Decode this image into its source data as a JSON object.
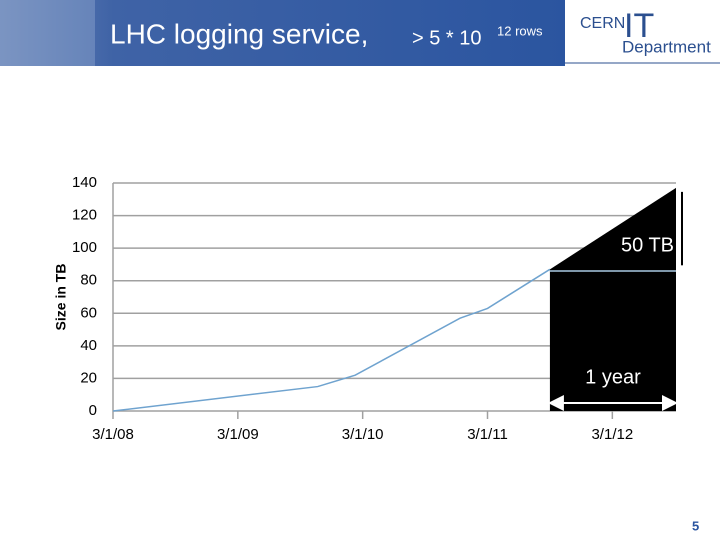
{
  "header": {
    "title": "LHC logging service,",
    "title_suffix": "> 5 * 10",
    "superscript": "12 rows",
    "logo_cern": "CERN",
    "logo_it": "IT",
    "logo_department": "Department"
  },
  "page_number": "5",
  "chart_data": {
    "type": "line",
    "ylabel": "Size in TB",
    "xlim": [
      2008.17,
      2012.68
    ],
    "xticks": [
      {
        "value": 2008.17,
        "label": "3/1/08"
      },
      {
        "value": 2009.17,
        "label": "3/1/09"
      },
      {
        "value": 2010.17,
        "label": "3/1/10"
      },
      {
        "value": 2011.17,
        "label": "3/1/11"
      },
      {
        "value": 2012.17,
        "label": "3/1/12"
      }
    ],
    "ylim": [
      0,
      140
    ],
    "yticks": [
      0,
      20,
      40,
      60,
      80,
      100,
      120,
      140
    ],
    "grid": true,
    "series": [
      {
        "color": "#6fa3cf",
        "x": [
          2008.17,
          2009.81,
          2010.11,
          2010.95,
          2011.17,
          2011.67
        ],
        "values": [
          0,
          15,
          22,
          57,
          63,
          87
        ]
      },
      {
        "color": "#000000",
        "fill": true,
        "x": [
          2011.67,
          2012.68
        ],
        "values": [
          87,
          137
        ]
      },
      {
        "color": "#a9c9e2",
        "x": [
          2011.67,
          2012.68
        ],
        "values": [
          86,
          86
        ]
      }
    ],
    "annotations": [
      "50 TB",
      "1 year"
    ]
  }
}
